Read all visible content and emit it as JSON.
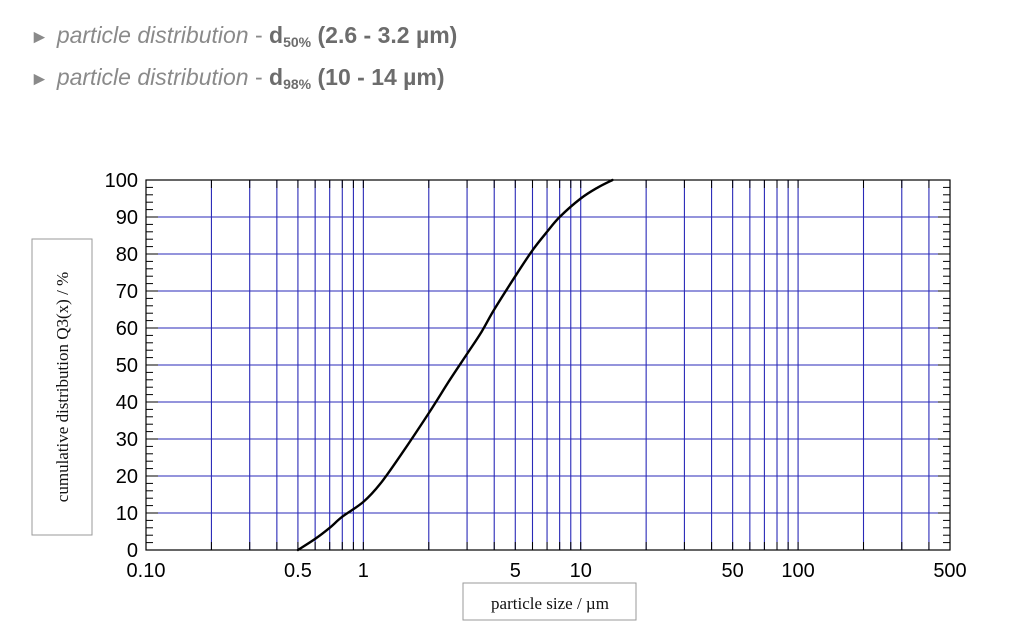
{
  "specs": [
    {
      "arrow": "►",
      "label": "particle distribution",
      "sep": " - ",
      "symbol": "d",
      "subscript": "50%",
      "range": " (2.6 - 3.2 µm)"
    },
    {
      "arrow": "►",
      "label": "particle distribution",
      "sep": " - ",
      "symbol": "d",
      "subscript": "98%",
      "range": " (10 - 14 µm)"
    }
  ],
  "chart_data": {
    "type": "line",
    "title": "",
    "xlabel": "particle size / µm",
    "ylabel": "cumulative distribution Q3(x) / %",
    "xscale": "log",
    "xlim": [
      0.1,
      500
    ],
    "ylim": [
      0,
      100
    ],
    "grid": true,
    "x_tick_labels": [
      {
        "value": 0.1,
        "label": "0.10"
      },
      {
        "value": 0.5,
        "label": "0.5"
      },
      {
        "value": 1,
        "label": "1"
      },
      {
        "value": 5,
        "label": "5"
      },
      {
        "value": 10,
        "label": "10"
      },
      {
        "value": 50,
        "label": "50"
      },
      {
        "value": 100,
        "label": "100"
      },
      {
        "value": 500,
        "label": "500"
      }
    ],
    "x_gridlines": [
      0.2,
      0.3,
      0.4,
      0.5,
      0.6,
      0.7,
      0.8,
      0.9,
      1,
      2,
      3,
      4,
      5,
      6,
      7,
      8,
      9,
      10,
      20,
      30,
      40,
      50,
      60,
      70,
      80,
      90,
      100,
      200,
      300,
      400
    ],
    "y_ticks": [
      0,
      10,
      20,
      30,
      40,
      50,
      60,
      70,
      80,
      90,
      100
    ],
    "series": [
      {
        "x": [
          0.5,
          0.6,
          0.7,
          0.8,
          1.0,
          1.2,
          1.5,
          2.0,
          2.5,
          3.0,
          3.5,
          4.0,
          5.0,
          6.0,
          7.0,
          8.0,
          10.0,
          12.0,
          14.0
        ],
        "y": [
          0,
          3,
          6,
          9,
          13,
          18,
          26,
          37,
          46,
          53,
          59,
          65,
          74,
          81,
          86,
          90,
          95,
          98,
          100
        ]
      }
    ],
    "colors": {
      "grid": "#2a2ab8",
      "axis": "#000000",
      "curve": "#000000"
    }
  }
}
